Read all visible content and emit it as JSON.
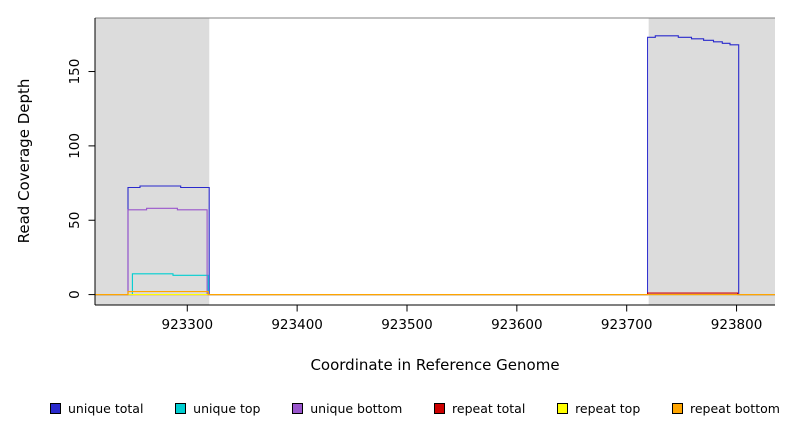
{
  "chart_data": {
    "type": "line",
    "title": "",
    "xlabel": "Coordinate in Reference Genome",
    "ylabel": "Read Coverage Depth",
    "xlim": [
      923216,
      923835
    ],
    "ylim": [
      -7,
      186
    ],
    "x_ticks": [
      923300,
      923400,
      923500,
      923600,
      923700,
      923800
    ],
    "y_ticks": [
      0,
      50,
      100,
      150
    ],
    "grid": false,
    "legend_position": "bottom",
    "frame_top_color": "#808080",
    "shaded_regions": [
      {
        "x0": 923216,
        "x1": 923320,
        "color": "#dcdcdc"
      },
      {
        "x0": 923720,
        "x1": 923835,
        "color": "#dcdcdc"
      }
    ],
    "series": [
      {
        "name": "unique total",
        "color": "#2929cc",
        "points": [
          [
            923216,
            0
          ],
          [
            923246,
            0
          ],
          [
            923246,
            72
          ],
          [
            923257,
            72
          ],
          [
            923257,
            73
          ],
          [
            923294,
            73
          ],
          [
            923294,
            72
          ],
          [
            923320,
            72
          ],
          [
            923320,
            0
          ],
          [
            923719,
            0
          ],
          [
            923719,
            173
          ],
          [
            923726,
            173
          ],
          [
            923726,
            174
          ],
          [
            923747,
            174
          ],
          [
            923747,
            173
          ],
          [
            923759,
            173
          ],
          [
            923759,
            172
          ],
          [
            923770,
            172
          ],
          [
            923770,
            171
          ],
          [
            923779,
            171
          ],
          [
            923779,
            170
          ],
          [
            923787,
            170
          ],
          [
            923787,
            169
          ],
          [
            923794,
            169
          ],
          [
            923794,
            168
          ],
          [
            923802,
            168
          ],
          [
            923802,
            0
          ],
          [
            923835,
            0
          ]
        ]
      },
      {
        "name": "unique top",
        "color": "#00ced1",
        "points": [
          [
            923216,
            0
          ],
          [
            923250,
            0
          ],
          [
            923250,
            14
          ],
          [
            923287,
            14
          ],
          [
            923287,
            13
          ],
          [
            923319,
            13
          ],
          [
            923319,
            0
          ],
          [
            923835,
            0
          ]
        ]
      },
      {
        "name": "unique bottom",
        "color": "#9955cc",
        "points": [
          [
            923216,
            0
          ],
          [
            923246,
            0
          ],
          [
            923246,
            57
          ],
          [
            923263,
            57
          ],
          [
            923263,
            58
          ],
          [
            923291,
            58
          ],
          [
            923291,
            57
          ],
          [
            923318,
            57
          ],
          [
            923318,
            0
          ],
          [
            923835,
            0
          ]
        ]
      },
      {
        "name": "repeat total",
        "color": "#cc0000",
        "points": [
          [
            923216,
            0
          ],
          [
            923719,
            0
          ],
          [
            923719,
            1
          ],
          [
            923801,
            1
          ],
          [
            923801,
            0
          ],
          [
            923835,
            0
          ]
        ]
      },
      {
        "name": "repeat top",
        "color": "#ffff00",
        "points": [
          [
            923216,
            0
          ],
          [
            923835,
            0
          ]
        ]
      },
      {
        "name": "repeat bottom",
        "color": "#ffa500",
        "points": [
          [
            923216,
            0
          ],
          [
            923246,
            0
          ],
          [
            923246,
            2
          ],
          [
            923319,
            2
          ],
          [
            923319,
            0
          ],
          [
            923835,
            0
          ]
        ]
      }
    ]
  }
}
